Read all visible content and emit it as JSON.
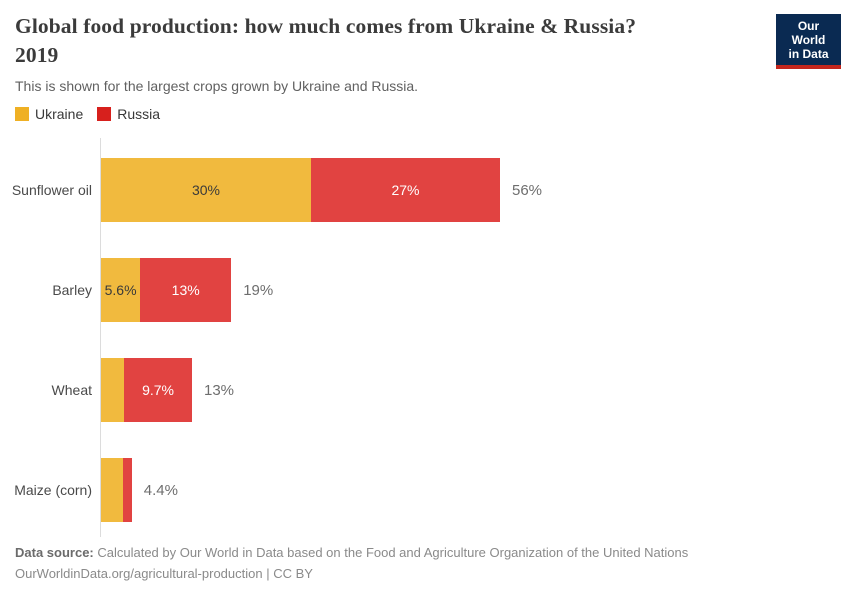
{
  "header": {
    "title": "Global food production: how much comes from Ukraine & Russia?",
    "year": "2019",
    "subtitle": "This is shown for the largest crops grown by Ukraine and Russia."
  },
  "logo": {
    "line1": "Our World",
    "line2": "in Data",
    "bg_color": "#0a2a52",
    "accent_color": "#c4261d"
  },
  "legend": [
    {
      "label": "Ukraine",
      "color": "#efb024"
    },
    {
      "label": "Russia",
      "color": "#d7201d"
    }
  ],
  "colors": {
    "ukraine_bar": "#f1ba3e",
    "russia_bar": "#e14341",
    "axis": "#dcdcdc"
  },
  "chart_data": {
    "type": "bar",
    "orientation": "horizontal",
    "stacked": true,
    "unit": "%",
    "xlim": [
      0,
      100
    ],
    "grid": false,
    "legend_position": "top-left",
    "categories": [
      "Sunflower oil",
      "Barley",
      "Wheat",
      "Maize (corn)"
    ],
    "series": [
      {
        "name": "Ukraine",
        "values": [
          30,
          5.6,
          3.3,
          3.1
        ]
      },
      {
        "name": "Russia",
        "values": [
          27,
          13,
          9.7,
          1.3
        ]
      }
    ],
    "segment_labels": {
      "ukraine": [
        "30%",
        "5.6%",
        "",
        ""
      ],
      "russia": [
        "27%",
        "13%",
        "9.7%",
        ""
      ]
    },
    "total_labels": [
      "56%",
      "19%",
      "13%",
      "4.4%"
    ]
  },
  "footer": {
    "source_label": "Data source:",
    "source_text": " Calculated by Our World in Data based on the Food and Agriculture Organization of the United Nations",
    "license_line": "OurWorldinData.org/agricultural-production | CC BY"
  }
}
